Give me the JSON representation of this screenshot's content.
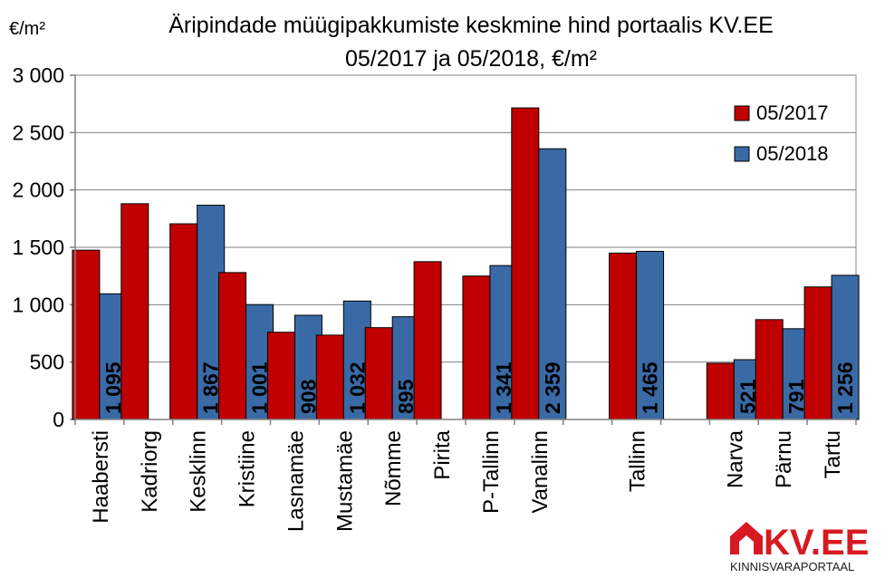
{
  "chart_data": {
    "type": "bar",
    "title": "Äripindade müügipakkumiste keskmine hind portaalis KV.EE",
    "subtitle": "05/2017 ja 05/2018, €/m²",
    "unit_label": "€/m²",
    "categories": [
      "Haabersti",
      "Kadriorg",
      "Kesklinn",
      "Kristiine",
      "Lasnamäe",
      "Mustamäe",
      "Nõmme",
      "Pirita",
      "P-Tallinn",
      "Vanalinn",
      "",
      "Tallinn",
      "",
      "Narva",
      "Pärnu",
      "Tartu"
    ],
    "series": [
      {
        "name": "05/2017",
        "color": "#c00000",
        "values": [
          1475,
          1880,
          1705,
          1280,
          760,
          735,
          800,
          1375,
          1250,
          2715,
          null,
          1450,
          null,
          490,
          870,
          1155
        ]
      },
      {
        "name": "05/2018",
        "color": "#3a6aa5",
        "values": [
          1095,
          null,
          1867,
          1001,
          908,
          1032,
          895,
          null,
          1341,
          2359,
          null,
          1465,
          null,
          521,
          791,
          1256
        ]
      }
    ],
    "data_labels_2018": [
      "1 095",
      "",
      "1 867",
      "1 001",
      "908",
      "1 032",
      "895",
      "",
      "1 341",
      "2 359",
      "",
      "1 465",
      "",
      "521",
      "791",
      "1 256"
    ],
    "ylim": [
      0,
      3000
    ],
    "yticks": [
      0,
      500,
      1000,
      1500,
      2000,
      2500,
      3000
    ],
    "ytick_labels": [
      "0",
      "500",
      "1 000",
      "1 500",
      "2 000",
      "2 500",
      "3 000"
    ],
    "grid": true,
    "legend_position": "top-right"
  },
  "logo": {
    "text": "KV.EE",
    "tagline": "KINNISVARAPORTAAL",
    "color": "#d71920"
  }
}
